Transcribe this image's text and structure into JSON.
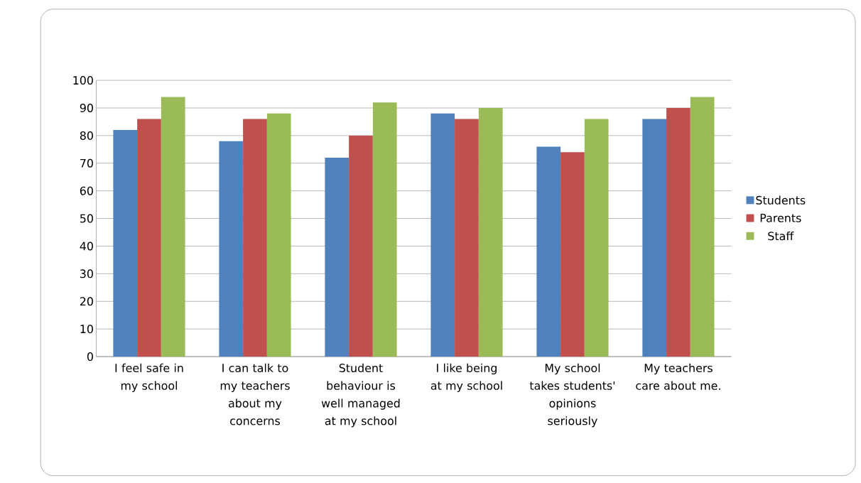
{
  "chart_data": {
    "type": "bar",
    "categories": [
      "I feel safe in my school",
      "I can talk to my teachers about my concerns",
      "Student behaviour is well managed at my school",
      "I like being at my school",
      "My school takes students' opinions seriously",
      "My teachers care about me."
    ],
    "series": [
      {
        "name": "Students",
        "color": "#4f81bd",
        "values": [
          82,
          78,
          72,
          88,
          76,
          86
        ]
      },
      {
        "name": "Parents",
        "color": "#c0504d",
        "values": [
          86,
          86,
          80,
          86,
          74,
          90
        ]
      },
      {
        "name": "Staff",
        "color": "#9bbb59",
        "values": [
          94,
          88,
          92,
          90,
          86,
          94
        ]
      }
    ],
    "ylim": [
      0,
      100
    ],
    "yticks": [
      0,
      10,
      20,
      30,
      40,
      50,
      60,
      70,
      80,
      90,
      100
    ],
    "grid": "y",
    "legend": "right"
  }
}
